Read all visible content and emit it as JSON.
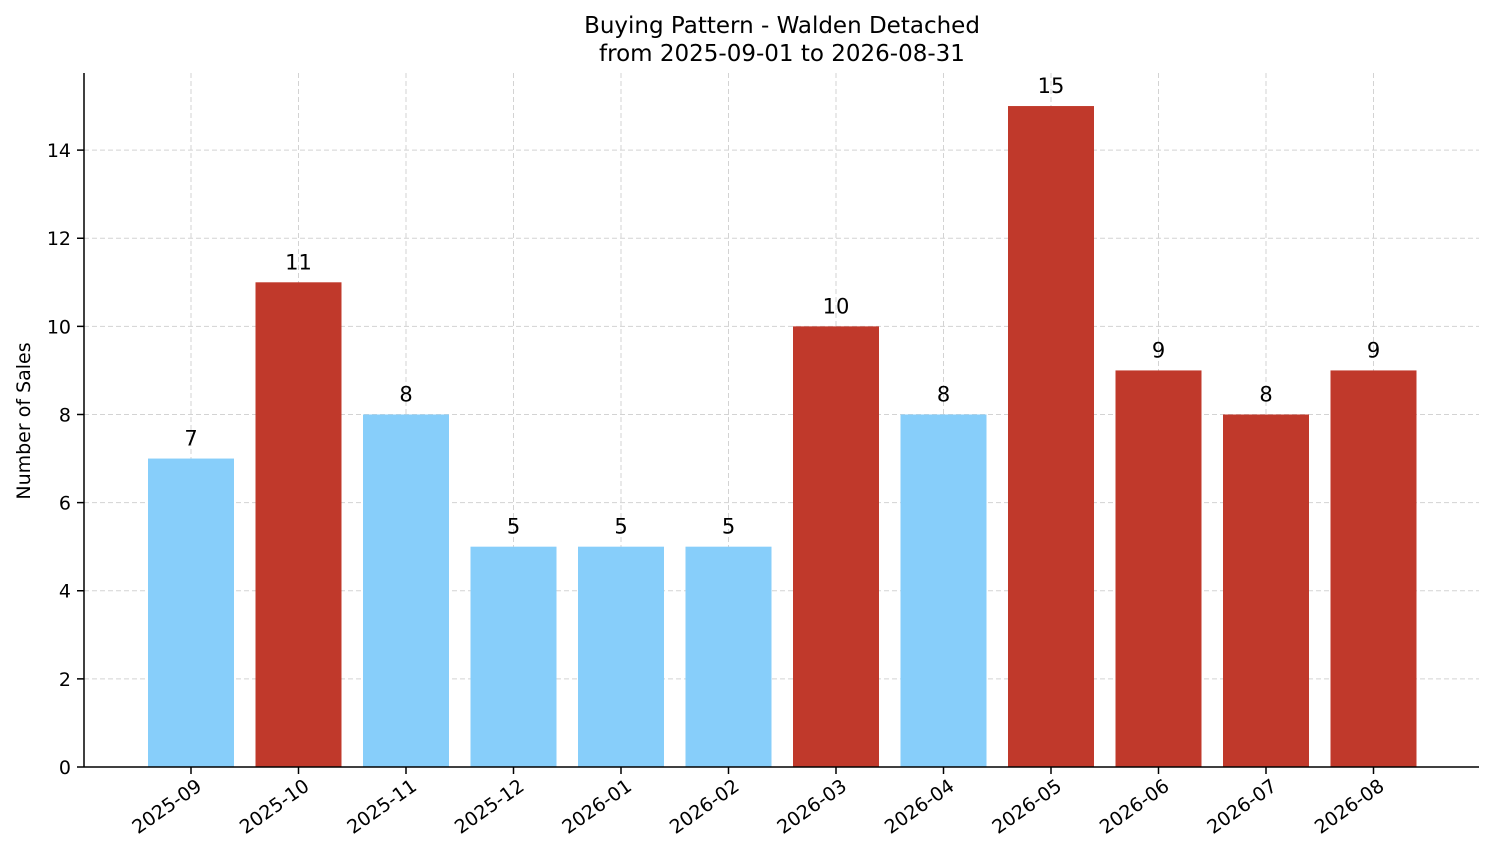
{
  "chart_data": {
    "type": "bar",
    "title": "Buying Pattern - Walden Detached",
    "subtitle": "from 2025-09-01 to 2026-08-31",
    "xlabel": "",
    "ylabel": "Number of Sales",
    "categories": [
      "2025-09",
      "2025-10",
      "2025-11",
      "2025-12",
      "2026-01",
      "2026-02",
      "2026-03",
      "2026-04",
      "2026-05",
      "2026-06",
      "2026-07",
      "2026-08"
    ],
    "values": [
      7,
      11,
      8,
      5,
      5,
      5,
      10,
      8,
      15,
      9,
      8,
      9
    ],
    "bar_colors": [
      "#87cefa",
      "#c0392b",
      "#87cefa",
      "#87cefa",
      "#87cefa",
      "#87cefa",
      "#c0392b",
      "#87cefa",
      "#c0392b",
      "#c0392b",
      "#c0392b",
      "#c0392b"
    ],
    "ylim": [
      0,
      15.75
    ],
    "yticks": [
      0,
      2,
      4,
      6,
      8,
      10,
      12,
      14
    ],
    "grid": true,
    "legend": "none"
  }
}
